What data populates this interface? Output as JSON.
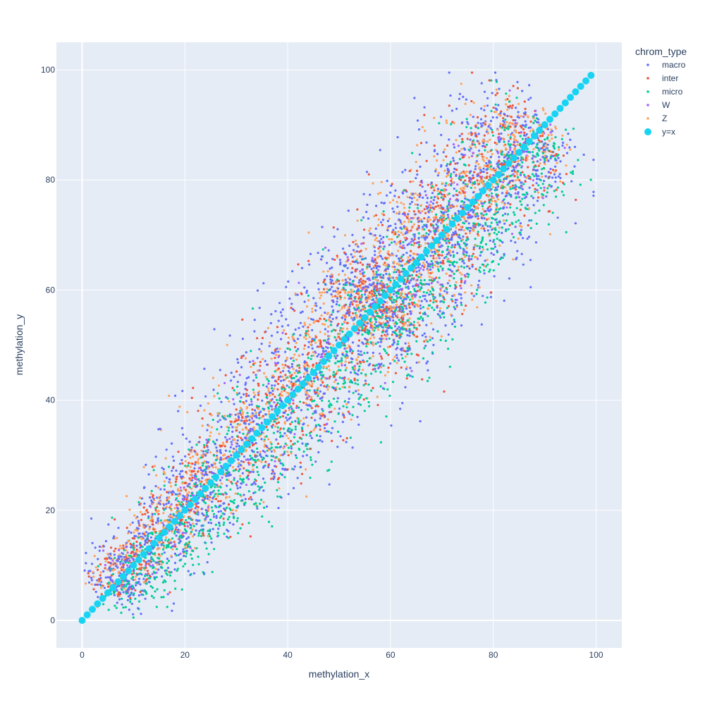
{
  "chart_data": {
    "type": "scatter",
    "xlabel": "methylation_x",
    "ylabel": "methylation_y",
    "xlim": [
      -5,
      105
    ],
    "ylim": [
      -5,
      105
    ],
    "x_ticks": [
      0,
      20,
      40,
      60,
      80,
      100
    ],
    "y_ticks": [
      0,
      20,
      40,
      60,
      80,
      100
    ],
    "grid": true,
    "legend": {
      "title": "chrom_type",
      "position": "right",
      "entries": [
        "macro",
        "inter",
        "micro",
        "W",
        "Z",
        "y=x"
      ]
    },
    "colors": {
      "plot_bg": "#e5ecf6",
      "grid": "#ffffff",
      "macro": "#636efa",
      "inter": "#ef553b",
      "micro": "#00cc96",
      "W": "#ab63fa",
      "Z": "#ffa15a",
      "y=x": "#19d3f3"
    },
    "series": [
      {
        "name": "macro",
        "n": 2200,
        "spread": 9.5,
        "bias": 0.6
      },
      {
        "name": "inter",
        "n": 1100,
        "spread": 8.5,
        "bias": 1.5
      },
      {
        "name": "micro",
        "n": 1600,
        "spread": 8.0,
        "bias": -3.0
      },
      {
        "name": "W",
        "n": 300,
        "spread": 7.0,
        "bias": 0.0
      },
      {
        "name": "Z",
        "n": 1500,
        "spread": 8.0,
        "bias": 2.0
      },
      {
        "name": "y=x",
        "line": {
          "x_start": 0,
          "x_end": 99,
          "step": 1
        }
      }
    ]
  }
}
